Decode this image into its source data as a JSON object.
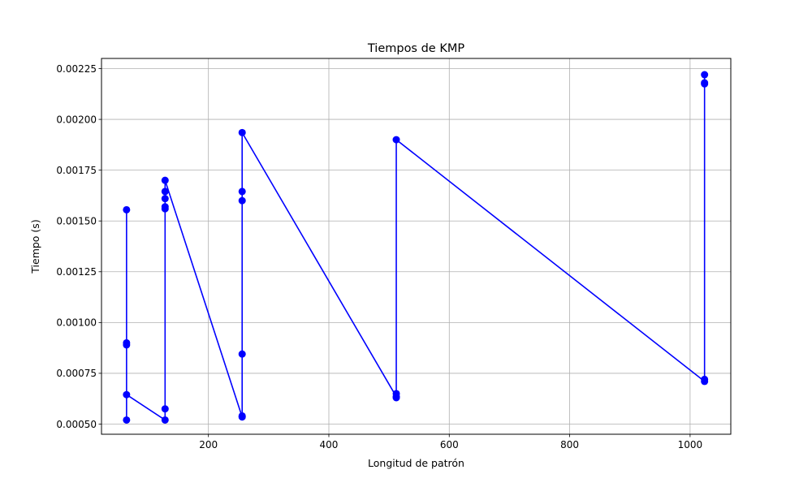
{
  "chart_data": {
    "type": "line",
    "title": "Tiempos de KMP",
    "xlabel": "Longitud de patrón",
    "ylabel": "Tiempo (s)",
    "xlim": [
      22.4,
      1067.6
    ],
    "ylim": [
      0.00045,
      0.0023
    ],
    "x_ticks": [
      200,
      400,
      600,
      800,
      1000
    ],
    "x_tick_labels": [
      "200",
      "400",
      "600",
      "800",
      "1000"
    ],
    "y_ticks": [
      0.0005,
      0.00075,
      0.001,
      0.00125,
      0.0015,
      0.00175,
      0.002,
      0.00225
    ],
    "y_tick_labels": [
      "0.00050",
      "0.00075",
      "0.00100",
      "0.00125",
      "0.00150",
      "0.00175",
      "0.00200",
      "0.00225"
    ],
    "grid": true,
    "series": [
      {
        "color": "#0000ff",
        "marker": "circle",
        "points": [
          {
            "x": 64,
            "y": 0.00052
          },
          {
            "x": 64,
            "y": 0.00089
          },
          {
            "x": 64,
            "y": 0.0009
          },
          {
            "x": 64,
            "y": 0.001555
          },
          {
            "x": 64,
            "y": 0.000645
          },
          {
            "x": 128,
            "y": 0.00052
          },
          {
            "x": 128,
            "y": 0.000575
          },
          {
            "x": 128,
            "y": 0.00156
          },
          {
            "x": 128,
            "y": 0.00157
          },
          {
            "x": 128,
            "y": 0.00161
          },
          {
            "x": 128,
            "y": 0.001645
          },
          {
            "x": 128,
            "y": 0.0017
          },
          {
            "x": 256,
            "y": 0.000535
          },
          {
            "x": 256,
            "y": 0.00054
          },
          {
            "x": 256,
            "y": 0.000845
          },
          {
            "x": 256,
            "y": 0.0016
          },
          {
            "x": 256,
            "y": 0.001645
          },
          {
            "x": 256,
            "y": 0.001935
          },
          {
            "x": 512,
            "y": 0.000635
          },
          {
            "x": 512,
            "y": 0.00063
          },
          {
            "x": 512,
            "y": 0.00065
          },
          {
            "x": 512,
            "y": 0.0019
          },
          {
            "x": 1024,
            "y": 0.00071
          },
          {
            "x": 1024,
            "y": 0.00072
          },
          {
            "x": 1024,
            "y": 0.002175
          },
          {
            "x": 1024,
            "y": 0.00218
          },
          {
            "x": 1024,
            "y": 0.00222
          }
        ]
      }
    ]
  }
}
